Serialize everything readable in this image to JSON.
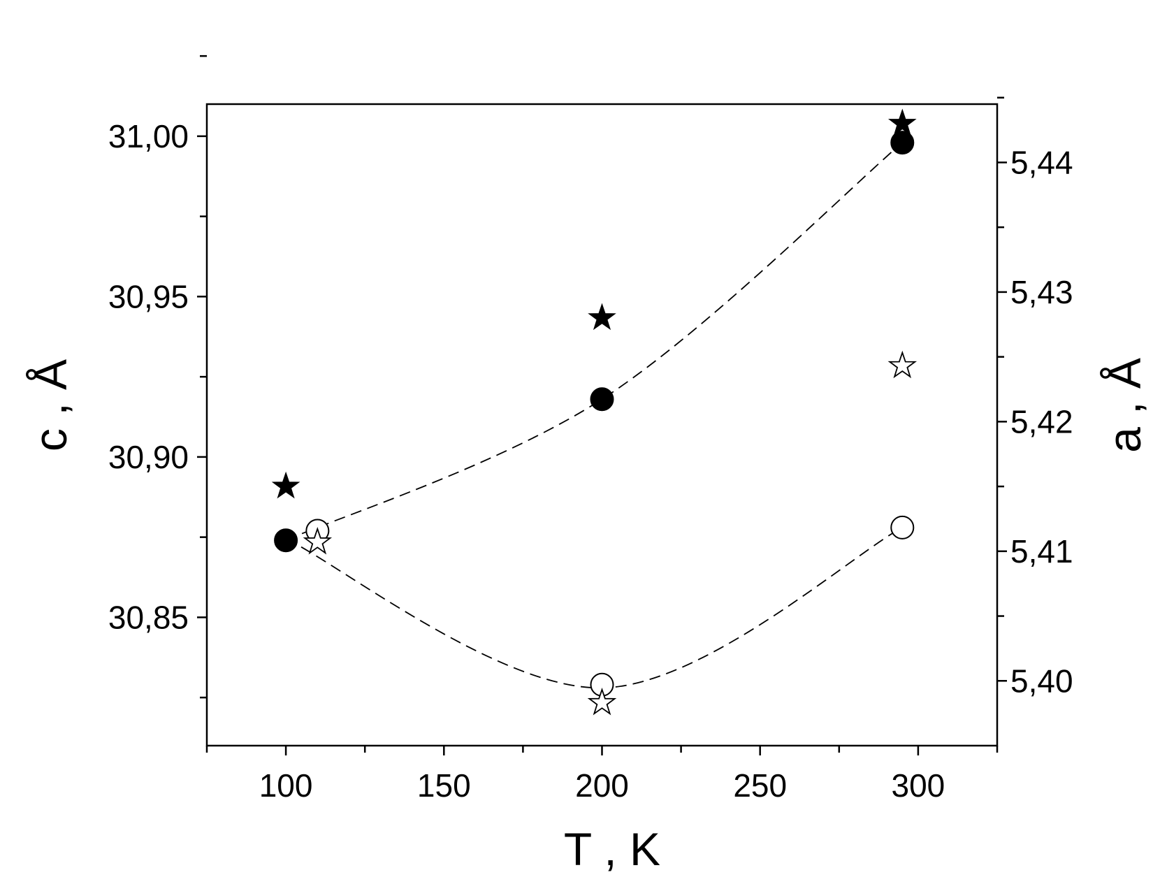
{
  "chart_data": {
    "type": "scatter",
    "xlabel": "T , K",
    "ylabel_left": "c , Å",
    "ylabel_right": "a , Å",
    "xlim": [
      75,
      325
    ],
    "ylim_left": [
      30.81,
      31.01
    ],
    "ylim_right": [
      5.395,
      5.4445
    ],
    "x_ticks": [
      100,
      150,
      200,
      250,
      300
    ],
    "x_tick_labels": [
      "100",
      "150",
      "200",
      "250",
      "300"
    ],
    "y_left_ticks": [
      30.85,
      30.9,
      30.95,
      31.0
    ],
    "y_left_tick_labels": [
      "30,85",
      "30,90",
      "30,95",
      "31,00"
    ],
    "y_right_ticks": [
      5.4,
      5.41,
      5.42,
      5.43,
      5.44
    ],
    "y_right_tick_labels": [
      "5,40",
      "5,41",
      "5,42",
      "5,43",
      "5,44"
    ],
    "series": [
      {
        "marker": "filled-circle",
        "axis": "left",
        "line": "dashed",
        "x": [
          100,
          200,
          295
        ],
        "y": [
          30.874,
          30.918,
          30.998
        ]
      },
      {
        "marker": "open-circle",
        "axis": "left",
        "line": "dashed",
        "x": [
          110,
          200,
          295
        ],
        "y": [
          30.877,
          30.829,
          30.878
        ]
      },
      {
        "marker": "filled-star",
        "axis": "right",
        "x": [
          100,
          200,
          295
        ],
        "y": [
          5.415,
          5.428,
          5.443
        ]
      },
      {
        "marker": "open-star",
        "axis": "right",
        "x": [
          110,
          200,
          295
        ],
        "y": [
          5.4107,
          5.3983,
          5.4243
        ]
      }
    ],
    "grid": false,
    "legend": "none",
    "colors": {
      "marker": "#000000",
      "background": "#ffffff"
    }
  }
}
